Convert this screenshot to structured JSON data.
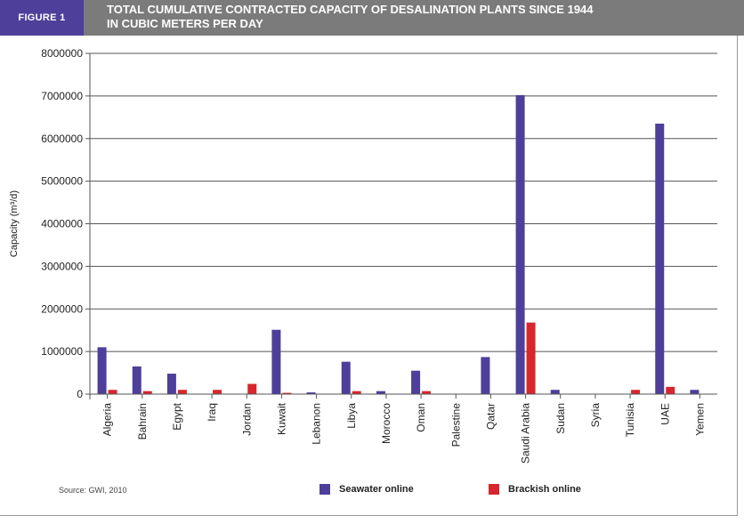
{
  "header": {
    "figure_label": "FIGURE 1",
    "title_line1": "TOTAL CUMULATIVE CONTRACTED CAPACITY OF DESALINATION PLANTS SINCE 1944",
    "title_line2": "IN CUBIC METERS PER DAY"
  },
  "colors": {
    "header_label_bg": "#4e3f9a",
    "header_title_bg": "#7b7b7b",
    "seawater": "#4e3f9a",
    "brackish": "#d7262c"
  },
  "source": "Source: GWI, 2010",
  "chart_data": {
    "type": "bar",
    "title": "Total cumulative contracted capacity of desalination plants since 1944 in cubic meters per day",
    "xlabel": "",
    "ylabel": "Capacity (m³/d)",
    "ylim": [
      0,
      8000000
    ],
    "yticks": [
      0,
      1000000,
      2000000,
      3000000,
      4000000,
      5000000,
      6000000,
      7000000,
      8000000
    ],
    "grid": true,
    "legend_position": "bottom",
    "categories": [
      "Algeria",
      "Bahrain",
      "Egypt",
      "Iraq",
      "Jordan",
      "Kuwait",
      "Lebanon",
      "Libya",
      "Morocco",
      "Oman",
      "Palestine",
      "Qatar",
      "Saudi Arabia",
      "Sudan",
      "Syria",
      "Tunisia",
      "UAE",
      "Yemen"
    ],
    "series": [
      {
        "name": "Seawater online",
        "color": "#4e3f9a",
        "values": [
          1100000,
          650000,
          480000,
          0,
          0,
          1510000,
          40000,
          760000,
          70000,
          550000,
          0,
          870000,
          7020000,
          100000,
          0,
          0,
          6350000,
          100000
        ]
      },
      {
        "name": "Brackish online",
        "color": "#d7262c",
        "values": [
          100000,
          70000,
          100000,
          100000,
          240000,
          30000,
          0,
          70000,
          0,
          70000,
          0,
          0,
          1680000,
          0,
          0,
          100000,
          170000,
          0
        ]
      }
    ]
  }
}
